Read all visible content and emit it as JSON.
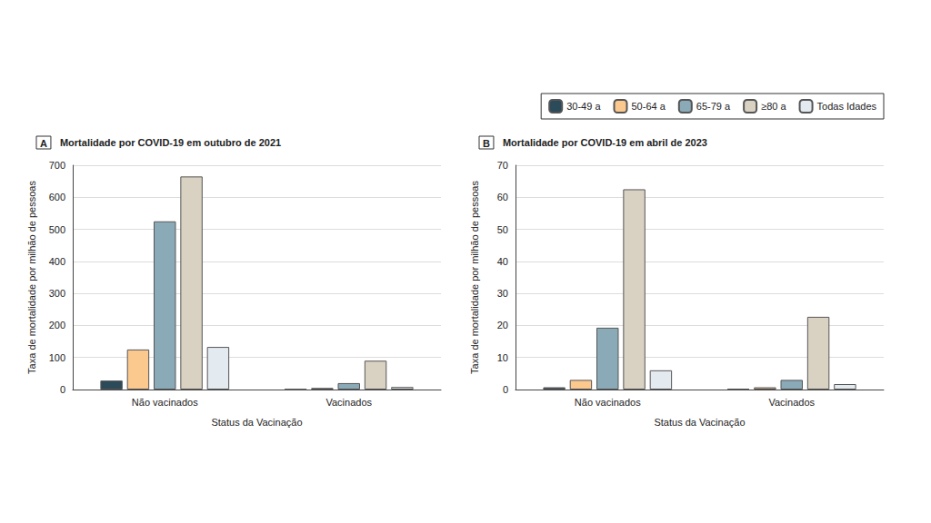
{
  "chart_data": [
    {
      "type": "bar",
      "panel_label": "A",
      "title": "Mortalidade por COVID-19 em outubro de 2021",
      "ylabel": "Taxa de mortalidade por milhão de pessoas",
      "xlabel": "Status da Vacinação",
      "categories": [
        "Não vacinados",
        "Vacinados"
      ],
      "series": [
        {
          "name": "30-49 a",
          "color": "#2b4a5a",
          "values": [
            28,
            1
          ]
        },
        {
          "name": "50-64 a",
          "color": "#fbc98e",
          "values": [
            125,
            5
          ]
        },
        {
          "name": "65-79 a",
          "color": "#8aaab8",
          "values": [
            525,
            20
          ]
        },
        {
          "name": "≥80 a",
          "color": "#d9d2c3",
          "values": [
            665,
            90
          ]
        },
        {
          "name": "Todas Idades",
          "color": "#e3ebf1",
          "values": [
            133,
            8
          ]
        }
      ],
      "ylim": [
        0,
        700
      ],
      "yticks": [
        0,
        100,
        200,
        300,
        400,
        500,
        600,
        700
      ],
      "grid": true
    },
    {
      "type": "bar",
      "panel_label": "B",
      "title": "Mortalidade por COVID-19 em abril de 2023",
      "ylabel": "Taxa de mortalidade por milhão de pessoas",
      "xlabel": "Status da Vacinação",
      "categories": [
        "Não vacinados",
        "Vacinados"
      ],
      "series": [
        {
          "name": "30-49 a",
          "color": "#2b4a5a",
          "values": [
            0.7,
            0.2
          ]
        },
        {
          "name": "50-64 a",
          "color": "#fbc98e",
          "values": [
            3,
            0.7
          ]
        },
        {
          "name": "65-79 a",
          "color": "#8aaab8",
          "values": [
            19.3,
            3
          ]
        },
        {
          "name": "≥80 a",
          "color": "#d9d2c3",
          "values": [
            62.5,
            22.7
          ]
        },
        {
          "name": "Todas Idades",
          "color": "#e3ebf1",
          "values": [
            6,
            1.7
          ]
        }
      ],
      "ylim": [
        0,
        70
      ],
      "yticks": [
        0,
        10,
        20,
        30,
        40,
        50,
        60,
        70
      ],
      "grid": true,
      "legend": "upper right"
    }
  ]
}
